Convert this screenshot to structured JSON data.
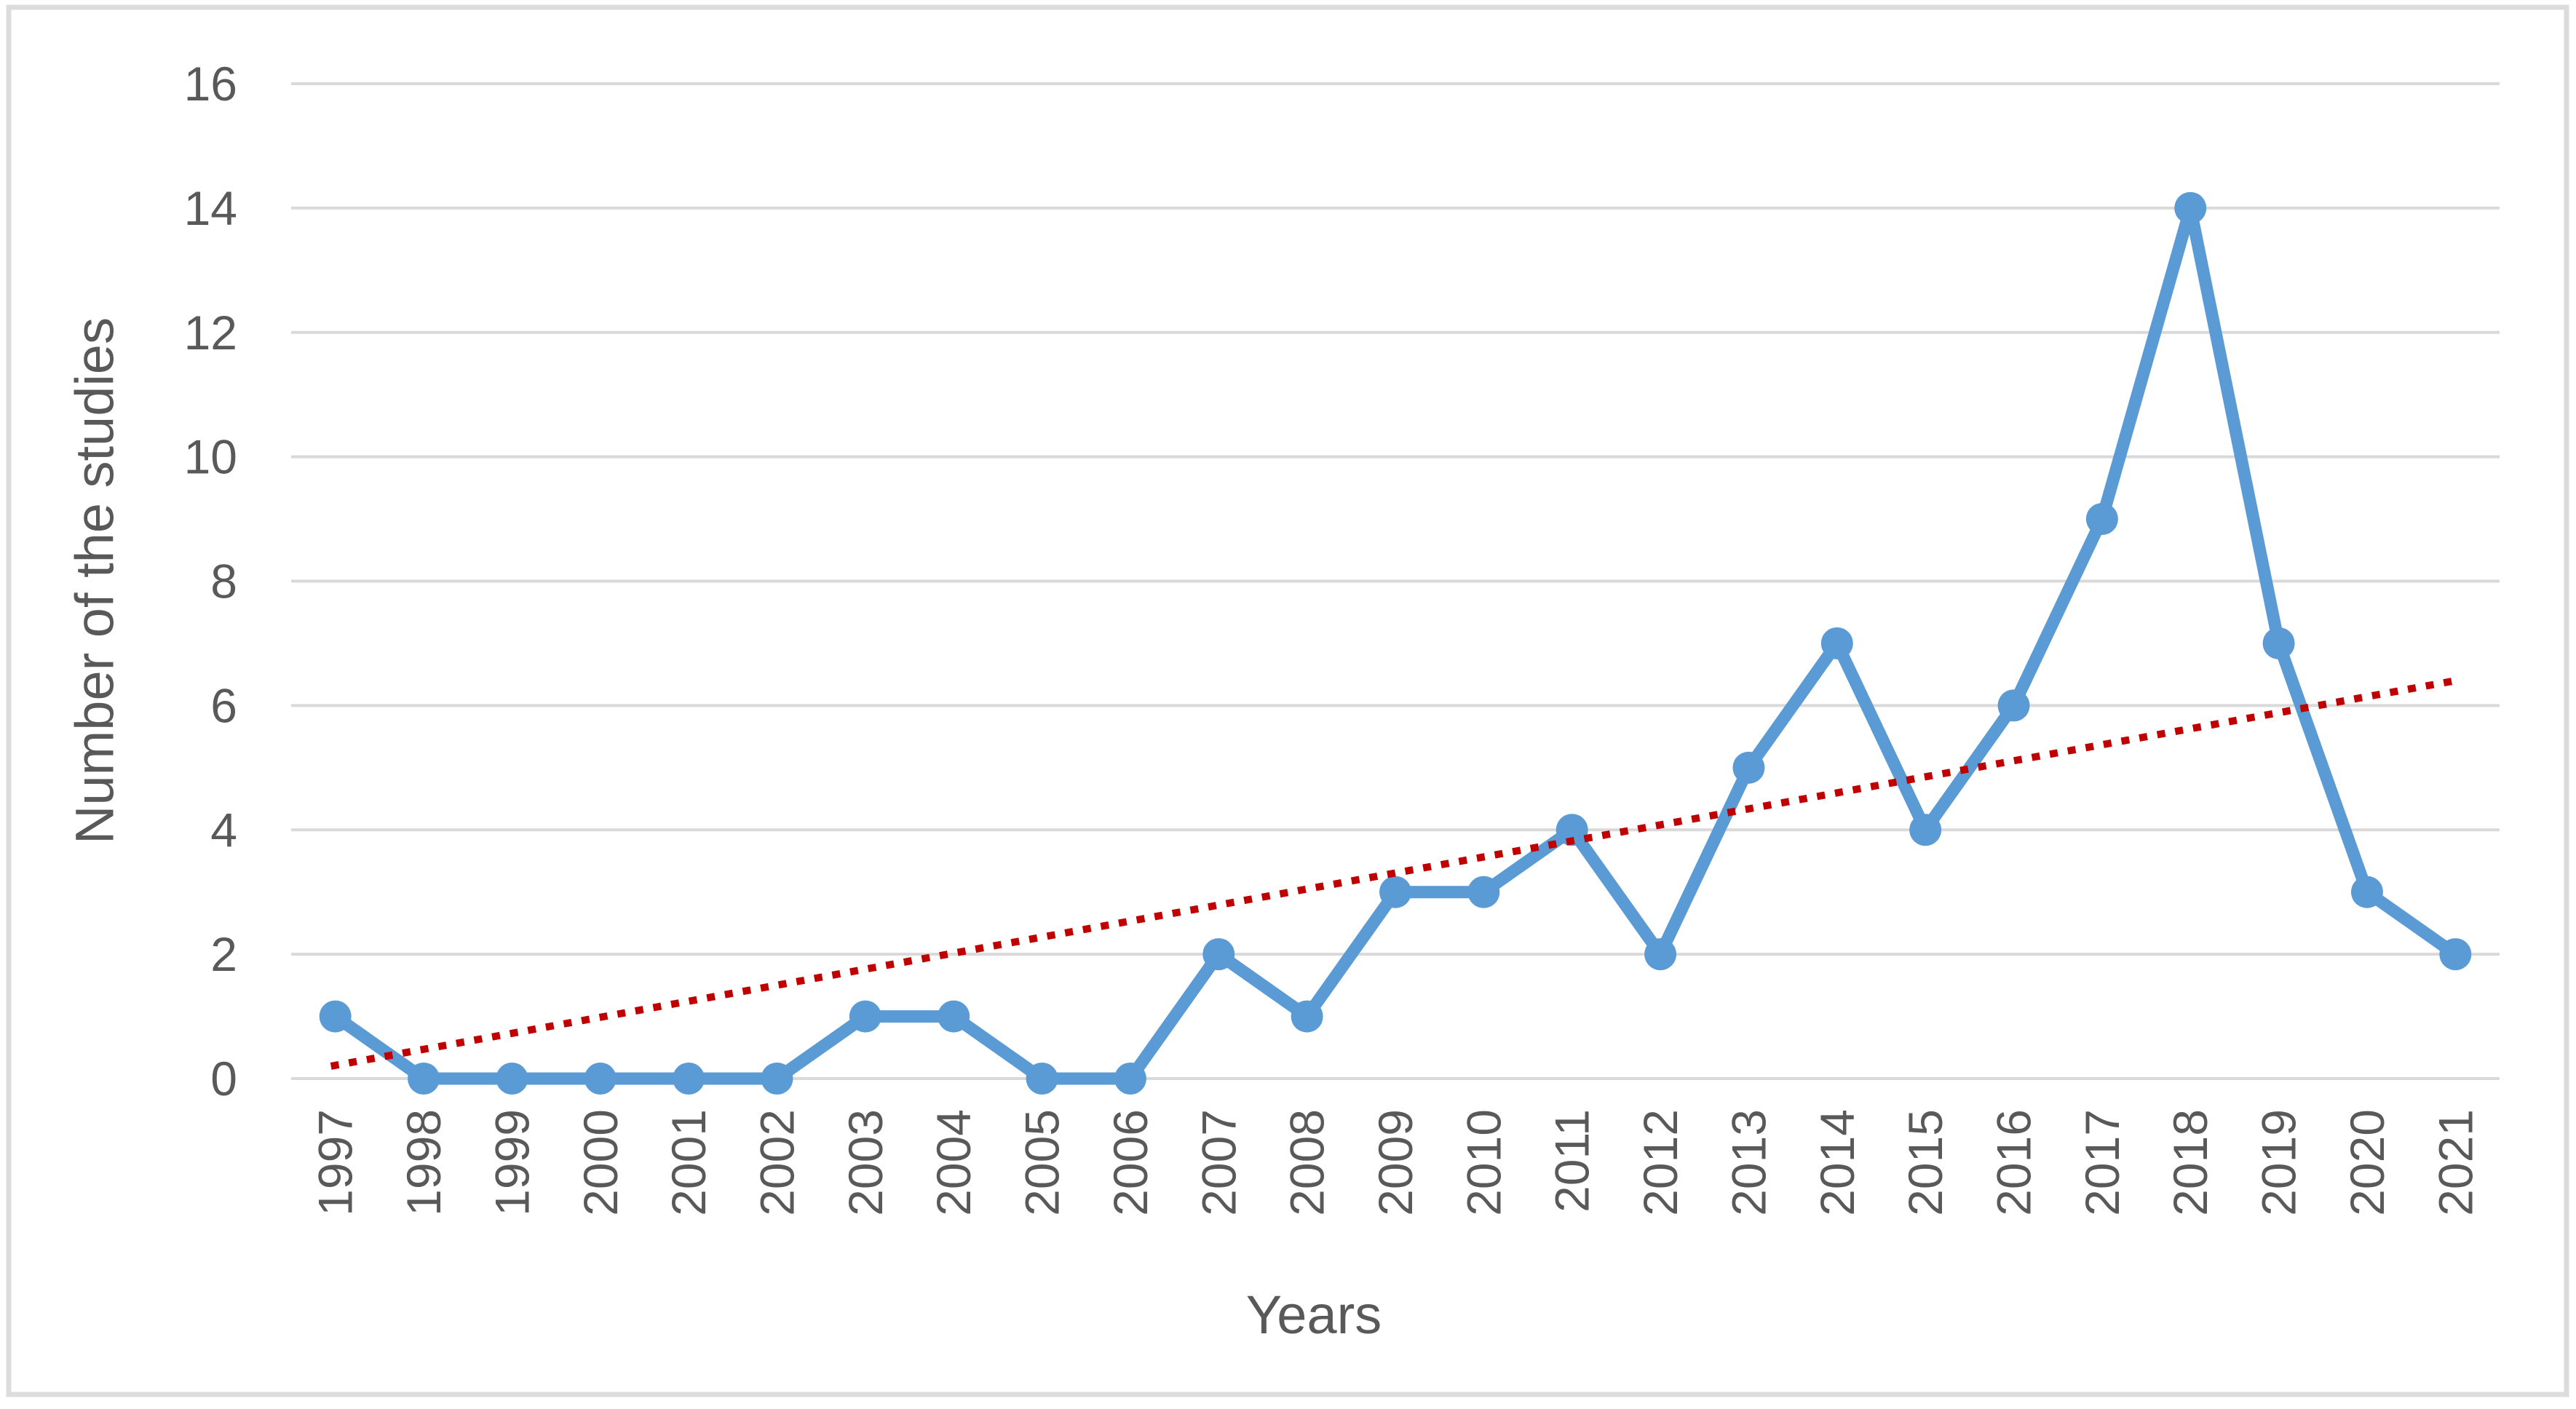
{
  "figure": {
    "background_color": "#ffffff",
    "border_color": "#dcdcdc"
  },
  "chart_data": {
    "type": "line",
    "title": "",
    "xlabel": "Years",
    "ylabel": "Number of the studies",
    "categories": [
      "1997",
      "1998",
      "1999",
      "2000",
      "2001",
      "2002",
      "2003",
      "2004",
      "2005",
      "2006",
      "2007",
      "2008",
      "2009",
      "2010",
      "2011",
      "2012",
      "2013",
      "2014",
      "2015",
      "2016",
      "2017",
      "2018",
      "2019",
      "2020",
      "2021"
    ],
    "series": [
      {
        "name": "Number of the studies",
        "color": "#5b9bd5",
        "marker": "circle",
        "values": [
          1,
          0,
          0,
          0,
          0,
          0,
          1,
          1,
          0,
          0,
          2,
          1,
          3,
          3,
          4,
          2,
          5,
          7,
          4,
          6,
          9,
          14,
          7,
          3,
          2
        ]
      }
    ],
    "trendline": {
      "name": "linear-trendline",
      "color": "#c00000",
      "style": "dotted",
      "start_value": 0.2,
      "end_value": 6.4
    },
    "ylim": [
      0,
      16
    ],
    "yticks": [
      0,
      2,
      4,
      6,
      8,
      10,
      12,
      14,
      16
    ],
    "xtick_rotation": -90,
    "grid": "horizontal",
    "gridline_color": "#d9d9d9",
    "tick_label_color": "#595959",
    "legend": "none"
  }
}
